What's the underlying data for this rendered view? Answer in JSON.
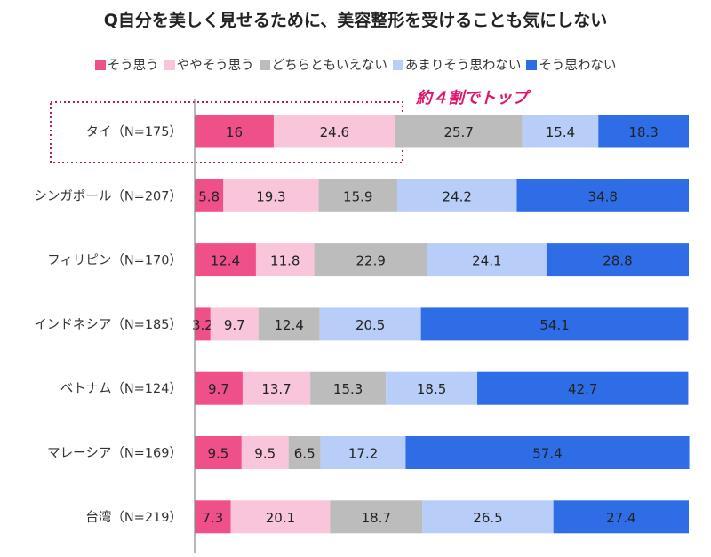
{
  "chart_data": {
    "type": "bar",
    "orientation": "horizontal",
    "stacked": true,
    "title": "Q自分を美しく見せるために、美容整形を受けることも気にしない",
    "categories": [
      "タイ（N=175）",
      "シンガポール（N=207）",
      "フィリピン（N=170）",
      "インドネシア（N=185）",
      "ベトナム（N=124）",
      "マレーシア（N=169）",
      "台湾（N=219）"
    ],
    "series": [
      {
        "name": "そう思う",
        "color": "#f0508a",
        "values": [
          16,
          5.8,
          12.4,
          3.2,
          9.7,
          9.5,
          7.3
        ]
      },
      {
        "name": "ややそう思う",
        "color": "#f8c5da",
        "values": [
          24.6,
          19.3,
          11.8,
          9.7,
          13.7,
          9.5,
          20.1
        ]
      },
      {
        "name": "どちらともいえない",
        "color": "#bcbcbc",
        "values": [
          25.7,
          15.9,
          22.9,
          12.4,
          15.3,
          6.5,
          18.7
        ]
      },
      {
        "name": "あまりそう思わない",
        "color": "#b8cdf7",
        "values": [
          15.4,
          24.2,
          24.1,
          20.5,
          18.5,
          17.2,
          26.5
        ]
      },
      {
        "name": "そう思わない",
        "color": "#2f6de6",
        "values": [
          18.3,
          34.8,
          28.8,
          54.1,
          42.7,
          57.4,
          27.4
        ]
      }
    ],
    "xlim": [
      0,
      100
    ],
    "grid": false,
    "legend_placement": "top",
    "annotation": {
      "text": "約４割でトップ",
      "color": "#e0166e",
      "highlight_category": "タイ（N=175）"
    }
  }
}
